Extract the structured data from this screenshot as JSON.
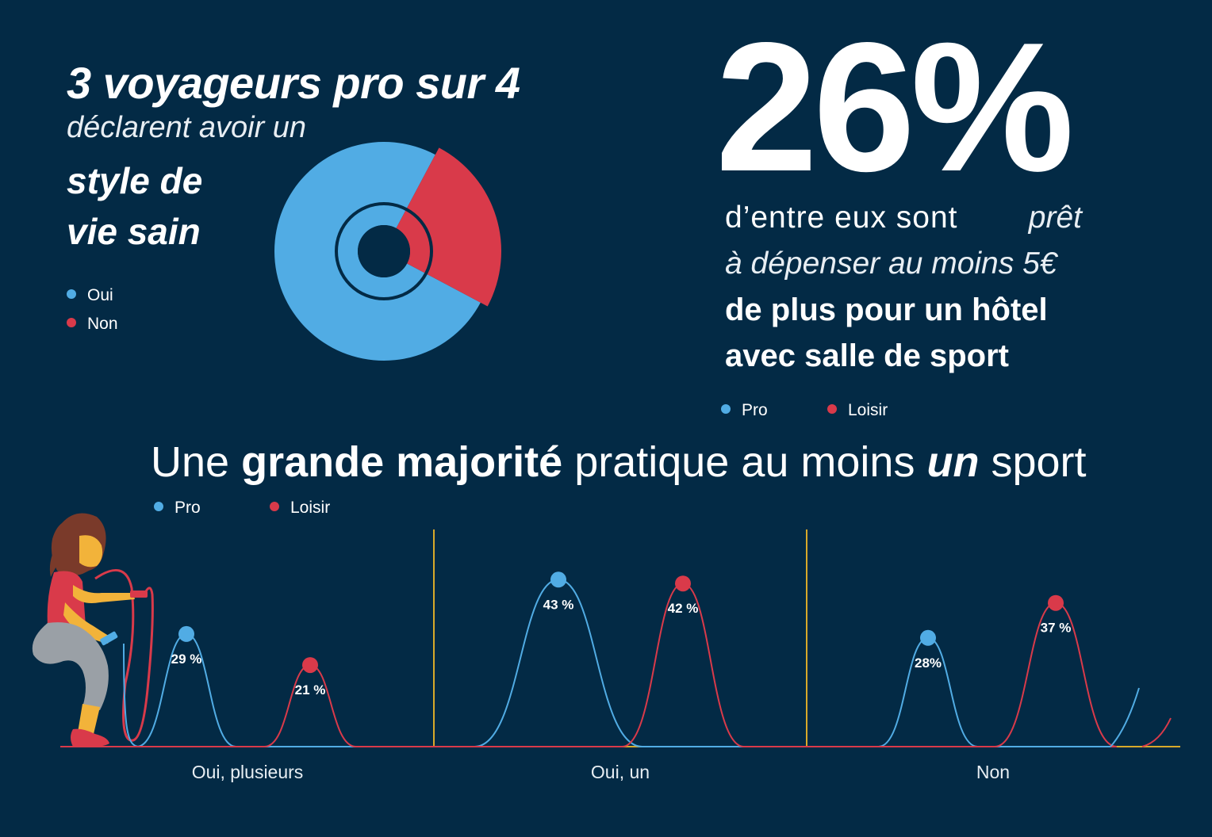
{
  "colors": {
    "background": "#032a45",
    "blue": "#51ace4",
    "red": "#d93a4a",
    "axis": "#d8a92a"
  },
  "intro": {
    "headline": "3 voyageurs pro sur 4",
    "line2": "déclarent avoir un",
    "line3": "style de",
    "line4": "vie sain"
  },
  "donut_legend": [
    {
      "label": "Oui",
      "color": "#51ace4"
    },
    {
      "label": "Non",
      "color": "#d93a4a"
    }
  ],
  "stat": {
    "value": "26%",
    "part1": "d’entre eux sont ",
    "part2": "prêt",
    "part3": "à dépenser au moins 5€",
    "part4": "de plus pour un hôtel",
    "part5": "avec salle de sport"
  },
  "top_legend": [
    {
      "label": "Pro",
      "color": "#51ace4"
    },
    {
      "label": "Loisir",
      "color": "#d93a4a"
    }
  ],
  "section_title": {
    "t1": "Une ",
    "t2": "grande majorité",
    "t3": " pratique au moins ",
    "t4": "un",
    "t5": " sport"
  },
  "chart_legend": [
    {
      "label": "Pro",
      "color": "#51ace4"
    },
    {
      "label": "Loisir",
      "color": "#d93a4a"
    }
  ],
  "chart_data": [
    {
      "type": "pie",
      "title": "3 voyageurs pro sur 4 déclarent avoir un style de vie sain",
      "labels": [
        "Oui",
        "Non"
      ],
      "values": [
        75,
        25
      ],
      "style": "donut"
    },
    {
      "type": "bar",
      "title": "Une grande majorité pratique au moins un sport",
      "categories": [
        "Oui, plusieurs",
        "Oui, un",
        "Non"
      ],
      "series": [
        {
          "name": "Pro",
          "values": [
            29,
            43,
            28
          ],
          "labels": [
            "29 %",
            "43 %",
            "28%"
          ]
        },
        {
          "name": "Loisir",
          "values": [
            21,
            42,
            37
          ],
          "labels": [
            "21 %",
            "42 %",
            "37 %"
          ]
        }
      ],
      "ylim": [
        0,
        50
      ]
    }
  ]
}
